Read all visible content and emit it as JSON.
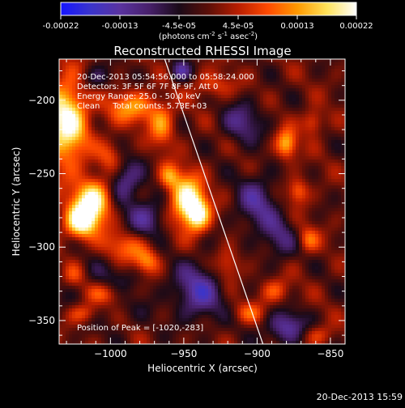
{
  "title": "Reconstructed RHESSI Image",
  "colorbar": {
    "ticks": [
      "-0.00022",
      "-0.00013",
      "-4.5e-05",
      "4.5e-05",
      "0.00013",
      "0.00022"
    ],
    "units_prefix": "(photons cm",
    "units_exp1": "-2",
    "units_mid": " s",
    "units_exp2": "-1",
    "units_mid2": " asec",
    "units_exp3": "-2",
    "units_suffix": ")"
  },
  "annotations": {
    "time": "20-Dec-2013 05:54:56.000 to 05:58:24.000",
    "detectors": "Detectors: 3F 5F 6F 7F 8F 9F, Att 0",
    "energy": "Energy Range: 25.0 - 50.0 keV",
    "clean": "Clean     Total counts: 5.73E+03",
    "peak": "Position of Peak = [-1020,-283]"
  },
  "timestamp": "20-Dec-2013 15:59",
  "colors": {
    "background": "#000000",
    "limb": "#ffffff",
    "colormap": [
      "#1515ff",
      "#3a34cc",
      "#5a33a0",
      "#47206a",
      "#1a0a18",
      "#5c0f08",
      "#b81e00",
      "#ff4a00",
      "#ff9900",
      "#ffe25a",
      "#ffffff"
    ]
  },
  "chart_data": {
    "type": "heatmap",
    "title": "Reconstructed RHESSI Image",
    "xlabel": "Heliocentric X (arcsec)",
    "ylabel": "Heliocentric Y (arcsec)",
    "xlim": [
      -1035,
      -840
    ],
    "ylim": [
      -366,
      -172
    ],
    "xticks": [
      -1000,
      -950,
      -900,
      -850
    ],
    "yticks": [
      -350,
      -300,
      -250,
      -200
    ],
    "xtick_labels": [
      "−1000",
      "−950",
      "−900",
      "−850"
    ],
    "ytick_labels": [
      "−350",
      "−300",
      "−250",
      "−200"
    ],
    "color_range": [
      -0.00022,
      0.00022
    ],
    "peak": {
      "x": -1020,
      "y": -283
    },
    "limb_line": [
      [
        -963,
        -172
      ],
      [
        -896,
        -366
      ]
    ],
    "sources": [
      {
        "x": -1030,
        "y": -215,
        "sx": 10,
        "sy": 22,
        "amp": 1.0
      },
      {
        "x": -1012,
        "y": -268,
        "sx": 9,
        "sy": 10,
        "amp": 1.0
      },
      {
        "x": -1020,
        "y": -283,
        "sx": 8,
        "sy": 8,
        "amp": 1.0
      },
      {
        "x": -948,
        "y": -268,
        "sx": 8,
        "sy": 12,
        "amp": 1.0
      },
      {
        "x": -940,
        "y": -278,
        "sx": 6,
        "sy": 8,
        "amp": 0.8
      },
      {
        "x": -960,
        "y": -252,
        "sx": 5,
        "sy": 6,
        "amp": 0.55
      },
      {
        "x": -1005,
        "y": -332,
        "sx": 12,
        "sy": 6,
        "amp": 0.6
      },
      {
        "x": -1018,
        "y": -345,
        "sx": 8,
        "sy": 5,
        "amp": 0.5
      },
      {
        "x": -985,
        "y": -205,
        "sx": 14,
        "sy": 8,
        "amp": 0.55
      },
      {
        "x": -965,
        "y": -218,
        "sx": 6,
        "sy": 10,
        "amp": 0.5
      },
      {
        "x": -990,
        "y": -300,
        "sx": 12,
        "sy": 8,
        "amp": 0.45
      },
      {
        "x": -975,
        "y": -310,
        "sx": 6,
        "sy": 6,
        "amp": 0.5
      },
      {
        "x": -880,
        "y": -230,
        "sx": 5,
        "sy": 7,
        "amp": 0.7
      },
      {
        "x": -862,
        "y": -215,
        "sx": 5,
        "sy": 6,
        "amp": 0.45
      },
      {
        "x": -872,
        "y": -262,
        "sx": 5,
        "sy": 6,
        "amp": 0.5
      },
      {
        "x": -865,
        "y": -295,
        "sx": 5,
        "sy": 6,
        "amp": 0.45
      },
      {
        "x": -888,
        "y": -330,
        "sx": 7,
        "sy": 6,
        "amp": 0.4
      },
      {
        "x": -860,
        "y": -360,
        "sx": 8,
        "sy": 5,
        "amp": 0.35
      },
      {
        "x": -920,
        "y": -312,
        "sx": 6,
        "sy": 8,
        "amp": 0.4
      },
      {
        "x": -905,
        "y": -345,
        "sx": 8,
        "sy": 5,
        "amp": 0.35
      },
      {
        "x": -1025,
        "y": -320,
        "sx": 6,
        "sy": 6,
        "amp": 0.4
      },
      {
        "x": -930,
        "y": -190,
        "sx": 10,
        "sy": 6,
        "amp": 0.35
      },
      {
        "x": -1000,
        "y": -238,
        "sx": 6,
        "sy": 8,
        "amp": 0.35
      },
      {
        "x": -1005,
        "y": -330,
        "sx": 20,
        "sy": 14,
        "amp": -0.35
      },
      {
        "x": -940,
        "y": -330,
        "sx": 12,
        "sy": 14,
        "amp": -0.6
      },
      {
        "x": -990,
        "y": -255,
        "sx": 8,
        "sy": 10,
        "amp": -0.55
      },
      {
        "x": -975,
        "y": -280,
        "sx": 10,
        "sy": 10,
        "amp": -0.5
      },
      {
        "x": -900,
        "y": -270,
        "sx": 10,
        "sy": 14,
        "amp": -0.5
      },
      {
        "x": -880,
        "y": -355,
        "sx": 10,
        "sy": 8,
        "amp": -0.6
      },
      {
        "x": -1010,
        "y": -185,
        "sx": 8,
        "sy": 6,
        "amp": -0.35
      },
      {
        "x": -952,
        "y": -180,
        "sx": 5,
        "sy": 5,
        "amp": -0.5
      },
      {
        "x": -910,
        "y": -215,
        "sx": 10,
        "sy": 10,
        "amp": -0.45
      },
      {
        "x": -885,
        "y": -295,
        "sx": 8,
        "sy": 10,
        "amp": -0.4
      }
    ]
  }
}
